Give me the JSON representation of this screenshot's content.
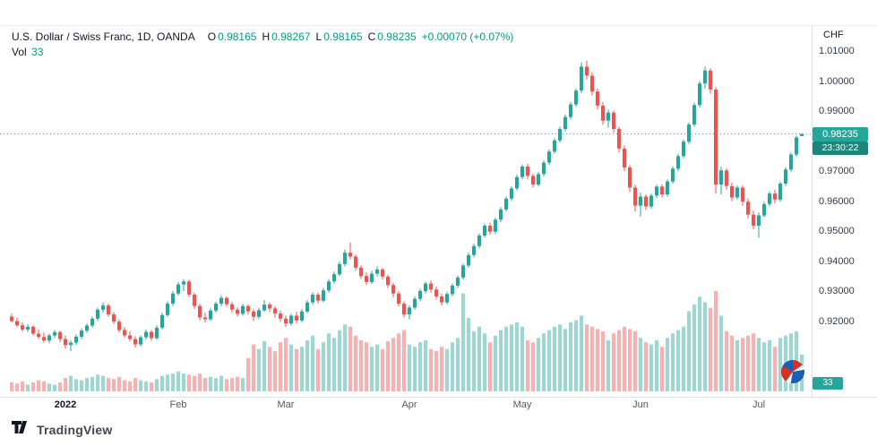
{
  "header": {
    "symbol_title": "U.S. Dollar / Swiss Franc, 1D, OANDA",
    "ohlc": {
      "o_label": "O",
      "o": "0.98165",
      "h_label": "H",
      "h": "0.98267",
      "l_label": "L",
      "l": "0.98165",
      "c_label": "C",
      "c": "0.98235",
      "change": "+0.00070 (+0.07%)"
    },
    "vol_label": "Vol",
    "vol_value": "33"
  },
  "price_axis": {
    "currency": "CHF",
    "labels": [
      "1.01000",
      "1.00000",
      "0.99000",
      "0.97000",
      "0.96000",
      "0.95000",
      "0.94000",
      "0.93000",
      "0.92000"
    ],
    "badge_price": "0.98235",
    "badge_countdown": "23:30:22",
    "volume_badge": "33"
  },
  "time_axis": {
    "labels": [
      {
        "text": "2022",
        "index": 10,
        "bold": true
      },
      {
        "text": "Feb",
        "index": 31
      },
      {
        "text": "Mar",
        "index": 51
      },
      {
        "text": "Apr",
        "index": 74
      },
      {
        "text": "May",
        "index": 95
      },
      {
        "text": "Jun",
        "index": 117
      },
      {
        "text": "Jul",
        "index": 139
      }
    ]
  },
  "footer": {
    "brand": "TradingView"
  },
  "chart_data": {
    "type": "candlestick",
    "title": "U.S. Dollar / Swiss Franc",
    "interval": "1D",
    "exchange": "OANDA",
    "quote_currency": "CHF",
    "last_price": 0.98235,
    "last_volume": 33,
    "y_axis": {
      "visible_min": 0.897,
      "visible_max": 1.018,
      "tick_step": 0.01,
      "grid": false
    },
    "legend_position": "top-left",
    "colors": {
      "up": "#26a69a",
      "down": "#ef5350",
      "vol_up": "rgba(38,166,154,0.45)",
      "vol_down": "rgba(239,83,80,0.45)",
      "badge": "#26a69a",
      "countdown_badge": "#1c867d",
      "legend_value": "#089981"
    },
    "candles": [
      [
        0.9215,
        0.9225,
        0.9195,
        0.92
      ],
      [
        0.92,
        0.9212,
        0.918,
        0.9186
      ],
      [
        0.9186,
        0.9196,
        0.9165,
        0.9172
      ],
      [
        0.9172,
        0.919,
        0.9163,
        0.9181
      ],
      [
        0.9181,
        0.9186,
        0.9152,
        0.9158
      ],
      [
        0.9158,
        0.9173,
        0.914,
        0.9147
      ],
      [
        0.9147,
        0.9162,
        0.9128,
        0.9135
      ],
      [
        0.9135,
        0.9158,
        0.9126,
        0.9152
      ],
      [
        0.9152,
        0.917,
        0.9144,
        0.9163
      ],
      [
        0.9163,
        0.9168,
        0.913,
        0.914
      ],
      [
        0.914,
        0.9152,
        0.9108,
        0.912
      ],
      [
        0.912,
        0.9135,
        0.91,
        0.9128
      ],
      [
        0.9128,
        0.9155,
        0.912,
        0.9148
      ],
      [
        0.9148,
        0.9175,
        0.914,
        0.9168
      ],
      [
        0.9168,
        0.9192,
        0.916,
        0.9185
      ],
      [
        0.9185,
        0.9215,
        0.9178,
        0.9208
      ],
      [
        0.9208,
        0.9245,
        0.92,
        0.9238
      ],
      [
        0.9238,
        0.9262,
        0.9228,
        0.9252
      ],
      [
        0.9252,
        0.9258,
        0.9215,
        0.9222
      ],
      [
        0.9222,
        0.923,
        0.919,
        0.9198
      ],
      [
        0.9198,
        0.9205,
        0.9162,
        0.917
      ],
      [
        0.917,
        0.918,
        0.9145,
        0.9152
      ],
      [
        0.9152,
        0.9166,
        0.9132,
        0.914
      ],
      [
        0.914,
        0.915,
        0.9112,
        0.9122
      ],
      [
        0.9122,
        0.9152,
        0.9115,
        0.9146
      ],
      [
        0.9146,
        0.9172,
        0.9138,
        0.9164
      ],
      [
        0.9164,
        0.917,
        0.9135,
        0.9143
      ],
      [
        0.9143,
        0.9186,
        0.9138,
        0.9178
      ],
      [
        0.9178,
        0.9228,
        0.9172,
        0.922
      ],
      [
        0.922,
        0.9266,
        0.9214,
        0.9258
      ],
      [
        0.9258,
        0.93,
        0.925,
        0.9292
      ],
      [
        0.9292,
        0.933,
        0.9285,
        0.9322
      ],
      [
        0.9322,
        0.934,
        0.93,
        0.9332
      ],
      [
        0.9332,
        0.9338,
        0.928,
        0.9288
      ],
      [
        0.9288,
        0.9295,
        0.924,
        0.925
      ],
      [
        0.925,
        0.9258,
        0.9202,
        0.9212
      ],
      [
        0.9212,
        0.9228,
        0.9195,
        0.9206
      ],
      [
        0.9206,
        0.9242,
        0.92,
        0.9235
      ],
      [
        0.9235,
        0.9265,
        0.9228,
        0.9258
      ],
      [
        0.9258,
        0.9285,
        0.925,
        0.9277
      ],
      [
        0.9277,
        0.9282,
        0.9248,
        0.9256
      ],
      [
        0.9256,
        0.9264,
        0.9228,
        0.9238
      ],
      [
        0.9238,
        0.9246,
        0.9215,
        0.9224
      ],
      [
        0.9224,
        0.9258,
        0.9218,
        0.925
      ],
      [
        0.925,
        0.9256,
        0.9222,
        0.9232
      ],
      [
        0.9232,
        0.924,
        0.92,
        0.9214
      ],
      [
        0.9214,
        0.9244,
        0.9206,
        0.9236
      ],
      [
        0.9236,
        0.927,
        0.923,
        0.9255
      ],
      [
        0.9255,
        0.9262,
        0.923,
        0.9242
      ],
      [
        0.9242,
        0.925,
        0.9212,
        0.9225
      ],
      [
        0.9225,
        0.9235,
        0.9198,
        0.9208
      ],
      [
        0.9208,
        0.9218,
        0.918,
        0.9192
      ],
      [
        0.9192,
        0.9225,
        0.9185,
        0.9218
      ],
      [
        0.9218,
        0.923,
        0.9192,
        0.9202
      ],
      [
        0.9202,
        0.924,
        0.9196,
        0.9232
      ],
      [
        0.9232,
        0.927,
        0.9226,
        0.9262
      ],
      [
        0.9262,
        0.9296,
        0.9255,
        0.9288
      ],
      [
        0.9288,
        0.9295,
        0.9258,
        0.9268
      ],
      [
        0.9268,
        0.931,
        0.9262,
        0.9302
      ],
      [
        0.9302,
        0.934,
        0.9295,
        0.9332
      ],
      [
        0.9332,
        0.9365,
        0.9324,
        0.9356
      ],
      [
        0.9356,
        0.9398,
        0.935,
        0.939
      ],
      [
        0.939,
        0.9438,
        0.9382,
        0.9428
      ],
      [
        0.9428,
        0.9462,
        0.9405,
        0.9415
      ],
      [
        0.9415,
        0.9422,
        0.9368,
        0.9378
      ],
      [
        0.9378,
        0.9386,
        0.934,
        0.935
      ],
      [
        0.935,
        0.9362,
        0.932,
        0.933
      ],
      [
        0.933,
        0.9368,
        0.9324,
        0.9358
      ],
      [
        0.9358,
        0.9382,
        0.935,
        0.9372
      ],
      [
        0.9372,
        0.9378,
        0.9338,
        0.9348
      ],
      [
        0.9348,
        0.9355,
        0.931,
        0.932
      ],
      [
        0.932,
        0.9328,
        0.928,
        0.9292
      ],
      [
        0.9292,
        0.93,
        0.9248,
        0.9258
      ],
      [
        0.9258,
        0.9266,
        0.9212,
        0.9222
      ],
      [
        0.9222,
        0.9252,
        0.9205,
        0.9245
      ],
      [
        0.9245,
        0.9282,
        0.9238,
        0.9274
      ],
      [
        0.9274,
        0.9308,
        0.9266,
        0.93
      ],
      [
        0.93,
        0.9332,
        0.9292,
        0.9325
      ],
      [
        0.9325,
        0.9335,
        0.9295,
        0.9305
      ],
      [
        0.9305,
        0.9315,
        0.9272,
        0.9282
      ],
      [
        0.9282,
        0.9292,
        0.9252,
        0.9262
      ],
      [
        0.9262,
        0.9298,
        0.9255,
        0.929
      ],
      [
        0.929,
        0.9325,
        0.9282,
        0.9318
      ],
      [
        0.9318,
        0.9352,
        0.931,
        0.9345
      ],
      [
        0.9345,
        0.9392,
        0.9338,
        0.9385
      ],
      [
        0.9385,
        0.9428,
        0.9378,
        0.942
      ],
      [
        0.942,
        0.9458,
        0.9412,
        0.945
      ],
      [
        0.945,
        0.9492,
        0.9442,
        0.9485
      ],
      [
        0.9485,
        0.9525,
        0.9478,
        0.9518
      ],
      [
        0.9518,
        0.9528,
        0.9488,
        0.9498
      ],
      [
        0.9498,
        0.9545,
        0.949,
        0.9538
      ],
      [
        0.9538,
        0.958,
        0.953,
        0.9572
      ],
      [
        0.9572,
        0.9615,
        0.9565,
        0.9608
      ],
      [
        0.9608,
        0.965,
        0.96,
        0.9642
      ],
      [
        0.9642,
        0.9688,
        0.9635,
        0.968
      ],
      [
        0.968,
        0.9722,
        0.9672,
        0.9715
      ],
      [
        0.9715,
        0.9725,
        0.9672,
        0.9684
      ],
      [
        0.9684,
        0.9692,
        0.9645,
        0.9655
      ],
      [
        0.9655,
        0.9698,
        0.9648,
        0.969
      ],
      [
        0.969,
        0.9735,
        0.9682,
        0.9728
      ],
      [
        0.9728,
        0.9772,
        0.972,
        0.9765
      ],
      [
        0.9765,
        0.981,
        0.9758,
        0.9802
      ],
      [
        0.9802,
        0.9848,
        0.9795,
        0.984
      ],
      [
        0.984,
        0.9888,
        0.9832,
        0.988
      ],
      [
        0.988,
        0.993,
        0.9872,
        0.9922
      ],
      [
        0.9922,
        0.9975,
        0.9915,
        0.9968
      ],
      [
        0.9968,
        1.0062,
        0.996,
        1.0048
      ],
      [
        1.0048,
        1.0068,
        1.0005,
        1.0018
      ],
      [
        1.0018,
        1.003,
        0.9952,
        0.9965
      ],
      [
        0.9965,
        0.9975,
        0.9905,
        0.9918
      ],
      [
        0.9918,
        0.993,
        0.9855,
        0.9868
      ],
      [
        0.9868,
        0.9905,
        0.9845,
        0.9895
      ],
      [
        0.9895,
        0.9902,
        0.9828,
        0.984
      ],
      [
        0.984,
        0.9848,
        0.9762,
        0.9775
      ],
      [
        0.9775,
        0.9785,
        0.97,
        0.9712
      ],
      [
        0.9712,
        0.972,
        0.963,
        0.9645
      ],
      [
        0.9645,
        0.9655,
        0.9565,
        0.9585
      ],
      [
        0.9585,
        0.9628,
        0.9548,
        0.9615
      ],
      [
        0.9615,
        0.9622,
        0.957,
        0.9582
      ],
      [
        0.9582,
        0.9625,
        0.9575,
        0.9618
      ],
      [
        0.9618,
        0.9655,
        0.961,
        0.9648
      ],
      [
        0.9648,
        0.9656,
        0.9612,
        0.9622
      ],
      [
        0.9622,
        0.9672,
        0.9615,
        0.9665
      ],
      [
        0.9665,
        0.9715,
        0.9658,
        0.9708
      ],
      [
        0.9708,
        0.9758,
        0.97,
        0.975
      ],
      [
        0.975,
        0.9805,
        0.9742,
        0.9798
      ],
      [
        0.9798,
        0.9862,
        0.979,
        0.9855
      ],
      [
        0.9855,
        0.9928,
        0.9848,
        0.992
      ],
      [
        0.992,
        1.0,
        0.9912,
        0.9992
      ],
      [
        0.9992,
        1.0048,
        0.9975,
        1.0035
      ],
      [
        1.0035,
        1.0042,
        0.9958,
        0.9972
      ],
      [
        0.9972,
        0.998,
        0.9625,
        0.9655
      ],
      [
        0.9655,
        0.9715,
        0.9622,
        0.9702
      ],
      [
        0.9702,
        0.9708,
        0.9638,
        0.965
      ],
      [
        0.965,
        0.9662,
        0.96,
        0.9612
      ],
      [
        0.9612,
        0.9652,
        0.9605,
        0.9645
      ],
      [
        0.9645,
        0.9652,
        0.9585,
        0.9598
      ],
      [
        0.9598,
        0.9608,
        0.9542,
        0.9555
      ],
      [
        0.9555,
        0.9568,
        0.9505,
        0.9518
      ],
      [
        0.9518,
        0.9562,
        0.9478,
        0.9552
      ],
      [
        0.9552,
        0.9598,
        0.9545,
        0.959
      ],
      [
        0.959,
        0.9632,
        0.9582,
        0.9625
      ],
      [
        0.9625,
        0.9638,
        0.9592,
        0.9605
      ],
      [
        0.9605,
        0.9665,
        0.9598,
        0.9658
      ],
      [
        0.9658,
        0.9712,
        0.965,
        0.9705
      ],
      [
        0.9705,
        0.9762,
        0.9698,
        0.9755
      ],
      [
        0.9755,
        0.9818,
        0.9748,
        0.9812
      ],
      [
        0.98165,
        0.98267,
        0.98165,
        0.98235
      ]
    ],
    "volumes": [
      8,
      7,
      9,
      6,
      8,
      10,
      9,
      7,
      6,
      8,
      12,
      14,
      11,
      10,
      12,
      13,
      15,
      14,
      12,
      11,
      13,
      10,
      9,
      12,
      10,
      9,
      8,
      11,
      14,
      15,
      16,
      18,
      16,
      15,
      14,
      16,
      12,
      13,
      12,
      14,
      11,
      12,
      13,
      12,
      30,
      42,
      38,
      45,
      40,
      36,
      44,
      48,
      42,
      38,
      40,
      46,
      50,
      38,
      44,
      52,
      48,
      55,
      60,
      58,
      50,
      46,
      44,
      40,
      42,
      38,
      45,
      48,
      52,
      55,
      42,
      40,
      44,
      46,
      38,
      36,
      40,
      38,
      44,
      48,
      88,
      66,
      54,
      58,
      52,
      44,
      50,
      55,
      58,
      60,
      62,
      58,
      46,
      44,
      48,
      52,
      55,
      58,
      60,
      56,
      62,
      64,
      68,
      60,
      58,
      56,
      54,
      46,
      52,
      55,
      58,
      56,
      54,
      48,
      44,
      42,
      46,
      40,
      48,
      52,
      55,
      58,
      72,
      78,
      85,
      80,
      75,
      90,
      68,
      54,
      50,
      46,
      48,
      50,
      52,
      48,
      44,
      46,
      40,
      48,
      50,
      52,
      54,
      33
    ]
  }
}
